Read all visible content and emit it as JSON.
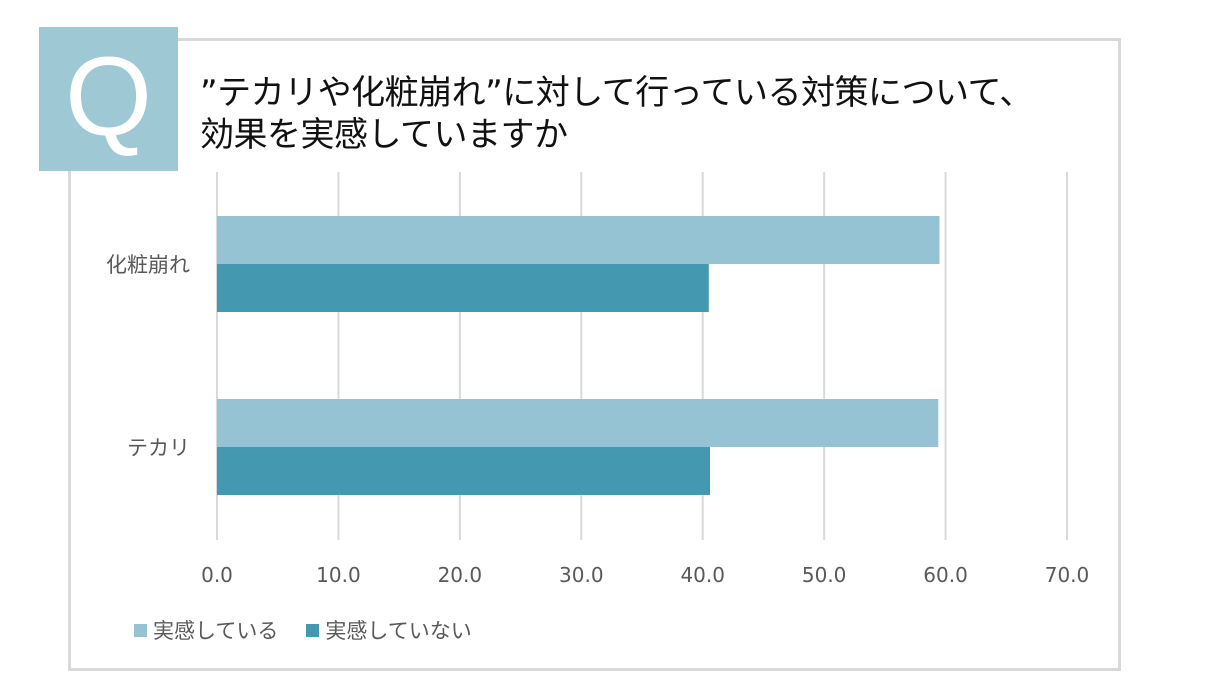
{
  "badge": {
    "letter": "Q",
    "color": "#9fc8d5"
  },
  "question": {
    "line1": "”テカリや化粧崩れ”に対して行っている対策について、",
    "line2": "効果を実感していますか"
  },
  "chart_data": {
    "type": "bar",
    "orientation": "horizontal",
    "categories": [
      "化粧崩れ",
      "テカリ"
    ],
    "series": [
      {
        "name": "実感している",
        "values": [
          59.5,
          59.4
        ],
        "color": "#96c3d3"
      },
      {
        "name": "実感していない",
        "values": [
          40.5,
          40.6
        ],
        "color": "#4499b1"
      }
    ],
    "xlim": [
      0,
      70
    ],
    "xticks": [
      "0.0",
      "10.0",
      "20.0",
      "30.0",
      "40.0",
      "50.0",
      "60.0",
      "70.0"
    ],
    "grid": true,
    "legend": "bottom-left"
  }
}
